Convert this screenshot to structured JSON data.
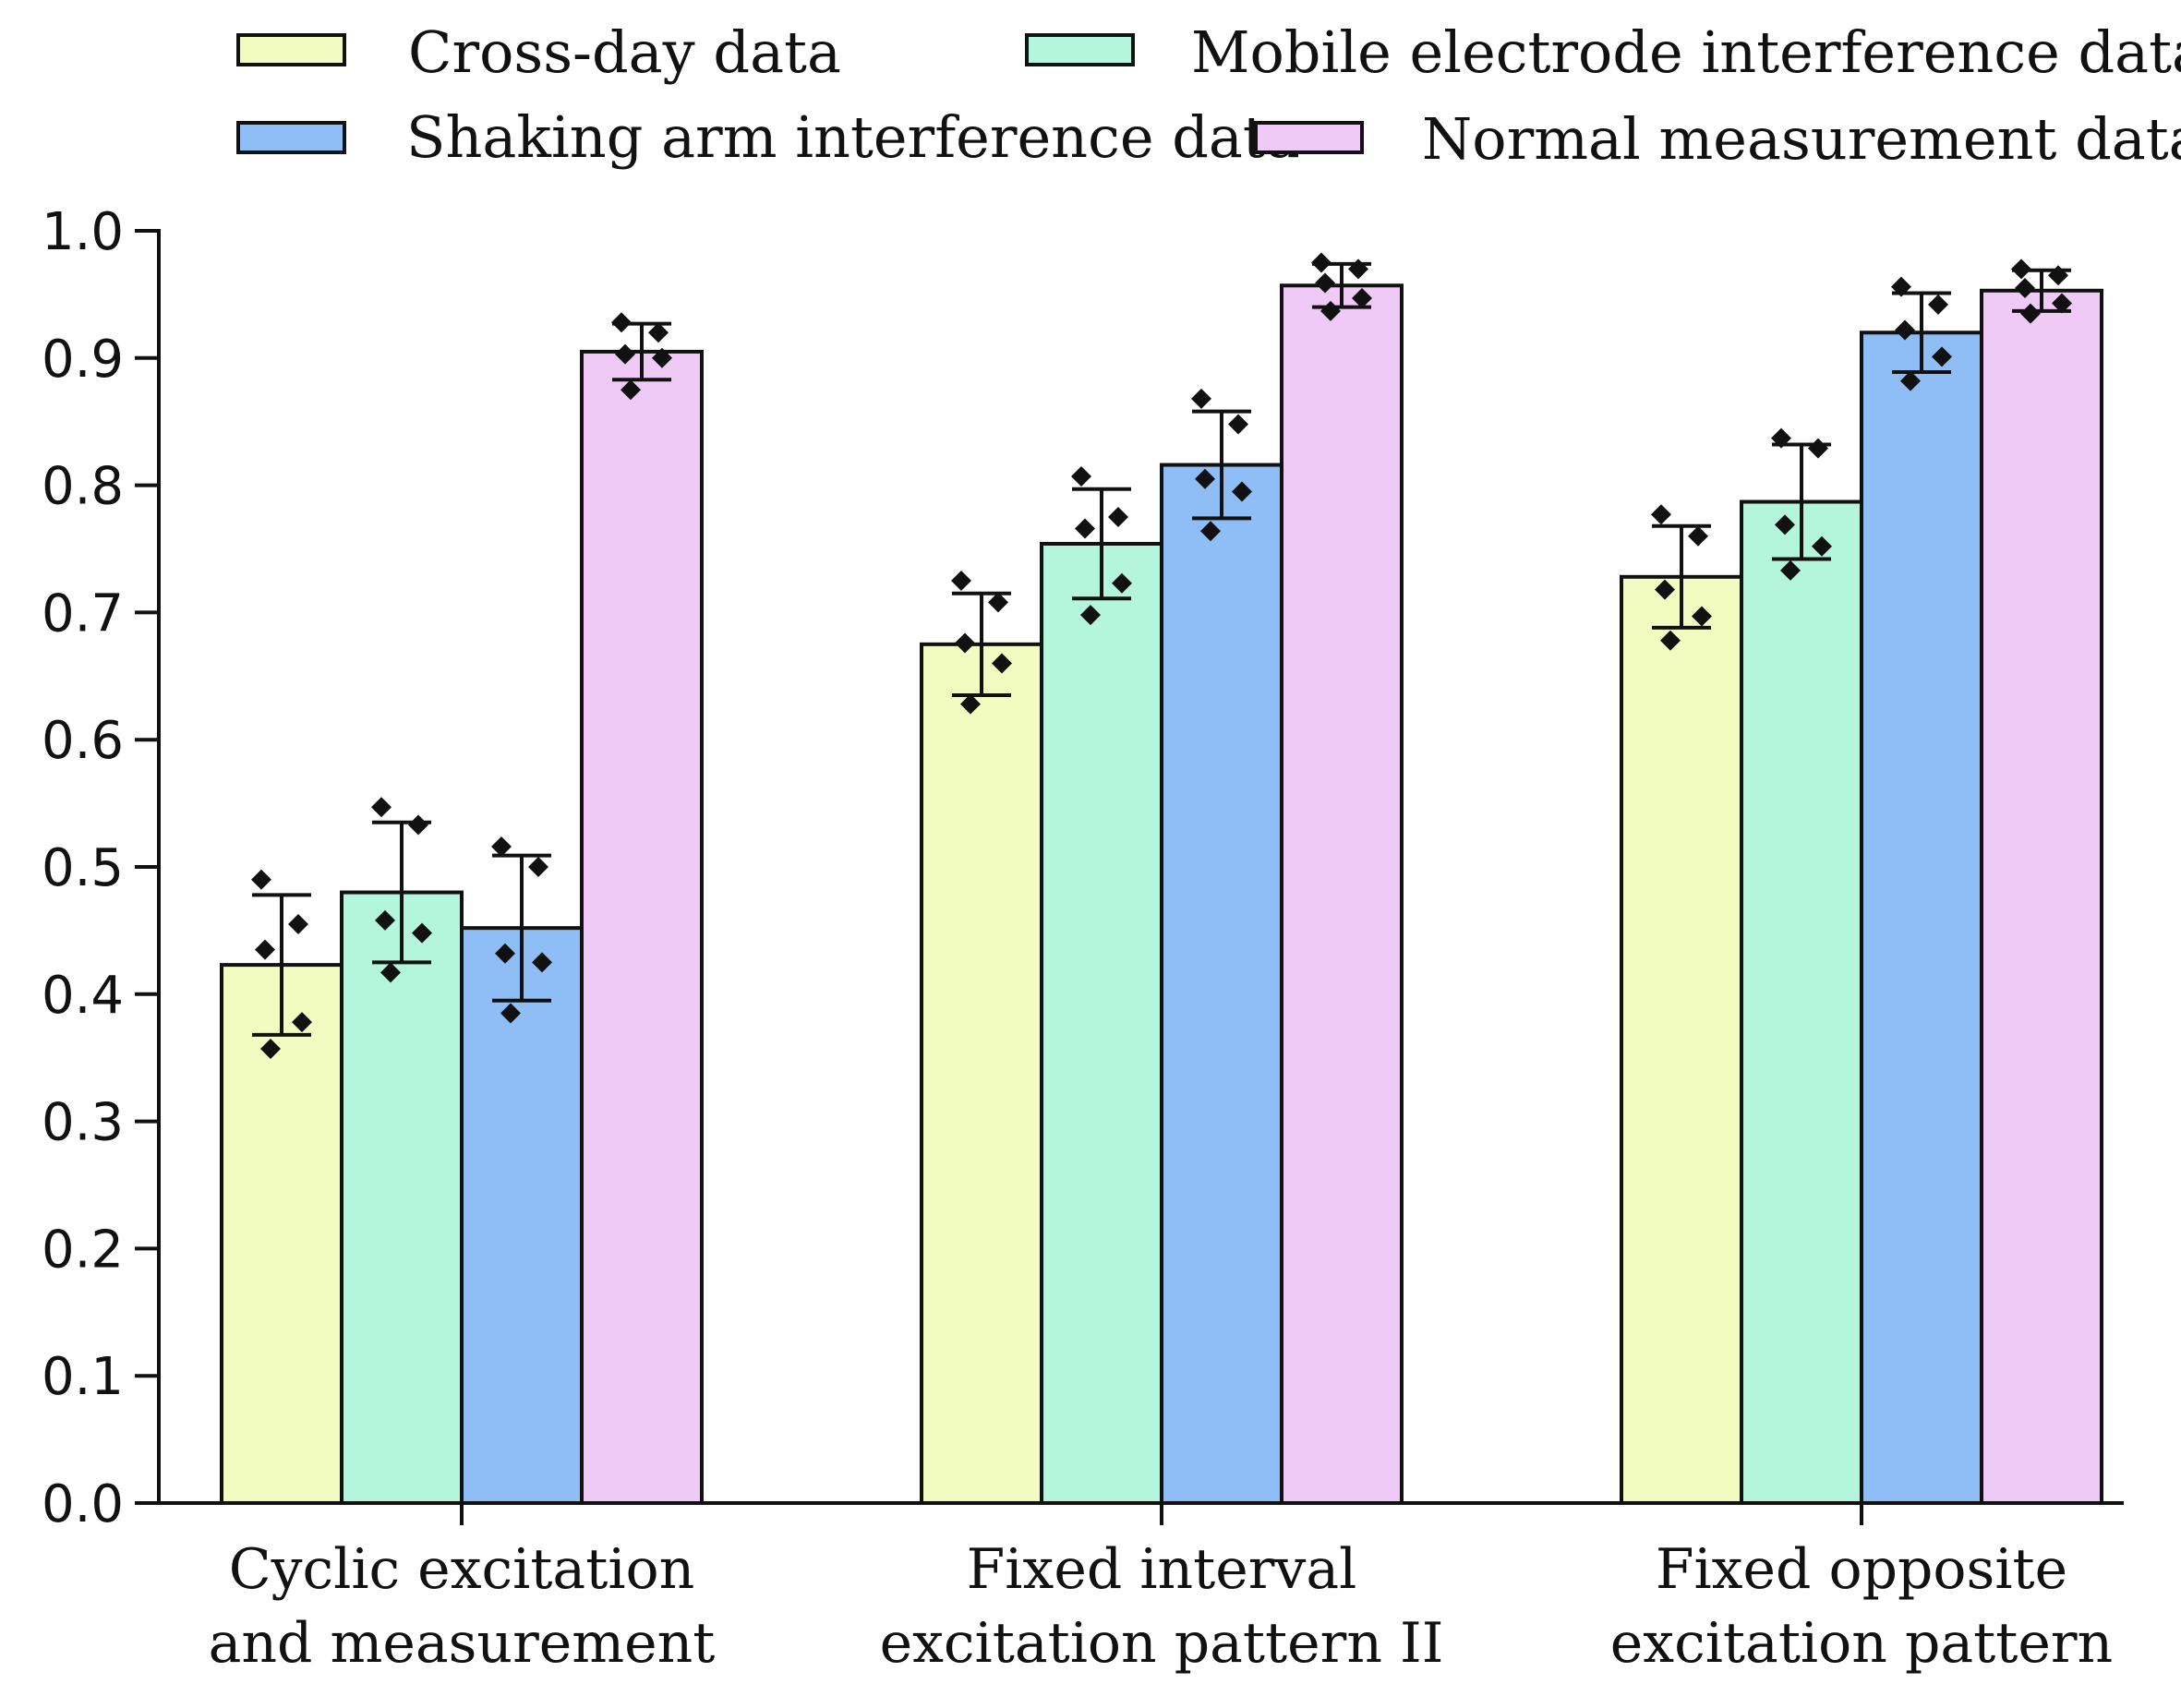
{
  "chart_data": {
    "type": "bar",
    "title": "",
    "xlabel": "",
    "ylabel": "",
    "ylim": [
      0,
      1.0
    ],
    "yticks": [
      "0.0",
      "0.1",
      "0.2",
      "0.3",
      "0.4",
      "0.5",
      "0.6",
      "0.7",
      "0.8",
      "0.9",
      "1.0"
    ],
    "grid": false,
    "legend_position": "top",
    "categories": [
      [
        "Cyclic excitation",
        "and measurement"
      ],
      [
        "Fixed interval",
        "excitation pattern II"
      ],
      [
        "Fixed opposite",
        "excitation pattern"
      ]
    ],
    "series": [
      {
        "name": "Cross-day data",
        "color": "#f2fcc0",
        "values": [
          0.423,
          0.675,
          0.728
        ],
        "error": [
          0.055,
          0.04,
          0.04
        ],
        "points": [
          [
            0.49,
            0.455,
            0.435,
            0.378,
            0.357
          ],
          [
            0.725,
            0.708,
            0.676,
            0.66,
            0.628
          ],
          [
            0.777,
            0.76,
            0.718,
            0.697,
            0.678
          ]
        ]
      },
      {
        "name": "Mobile electrode interference data",
        "color": "#b3f5dd",
        "values": [
          0.48,
          0.754,
          0.787
        ],
        "error": [
          0.055,
          0.043,
          0.045
        ],
        "points": [
          [
            0.547,
            0.533,
            0.458,
            0.448,
            0.417
          ],
          [
            0.807,
            0.775,
            0.766,
            0.723,
            0.698
          ],
          [
            0.837,
            0.829,
            0.769,
            0.752,
            0.733
          ]
        ]
      },
      {
        "name": "Shaking arm interference data",
        "color": "#8fbdf5",
        "values": [
          0.452,
          0.816,
          0.92
        ],
        "error": [
          0.057,
          0.042,
          0.031
        ],
        "points": [
          [
            0.516,
            0.5,
            0.432,
            0.425,
            0.385
          ],
          [
            0.868,
            0.848,
            0.805,
            0.795,
            0.764
          ],
          [
            0.956,
            0.942,
            0.922,
            0.901,
            0.882
          ]
        ]
      },
      {
        "name": "Normal measurement data",
        "color": "#efcaf6",
        "values": [
          0.905,
          0.957,
          0.953
        ],
        "error": [
          0.022,
          0.017,
          0.016
        ],
        "points": [
          [
            0.928,
            0.92,
            0.903,
            0.9,
            0.875
          ],
          [
            0.975,
            0.97,
            0.959,
            0.947,
            0.937
          ],
          [
            0.97,
            0.965,
            0.955,
            0.943,
            0.935
          ]
        ]
      }
    ]
  }
}
